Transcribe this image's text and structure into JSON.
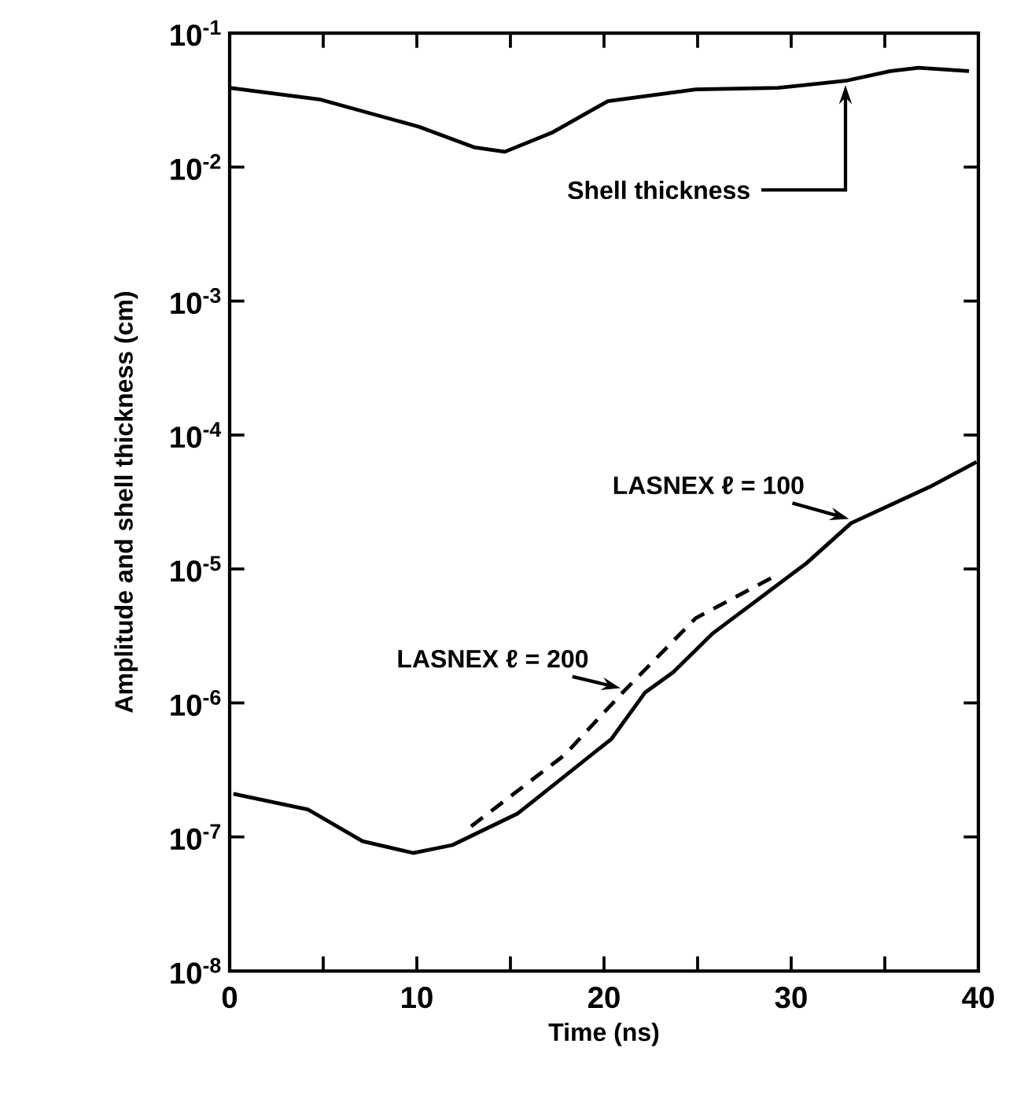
{
  "chart_data": {
    "type": "line",
    "xlabel": "Time (ns)",
    "ylabel": "Amplitude and shell thickness (cm)",
    "log": "y",
    "grid": false,
    "legend": false,
    "xlim": [
      0,
      40
    ],
    "ylim": [
      1e-08,
      0.1
    ],
    "xticks": [
      0,
      {
        "value": 5,
        "label": null
      },
      10,
      {
        "value": 15,
        "label": null
      },
      20,
      {
        "value": 25,
        "label": null
      },
      30,
      {
        "value": 35,
        "label": null
      },
      40
    ],
    "yticks": [
      {
        "value": 1e-08,
        "label": "10$^{-8}$"
      },
      {
        "value": 1e-07,
        "label": "10$^{-7}$"
      },
      {
        "value": 1e-06,
        "label": "10$^{-6}$"
      },
      {
        "value": 1e-05,
        "label": "10$^{-5}$"
      },
      {
        "value": 0.0001,
        "label": "10$^{-4}$"
      },
      {
        "value": 0.001,
        "label": "10$^{-3}$"
      },
      {
        "value": 0.01,
        "label": "10$^{-2}$"
      },
      {
        "value": 0.1,
        "label": "10$^{-1}$"
      }
    ],
    "series": [
      {
        "name": "Shell thickness",
        "color": "#000000",
        "line_style": "solid",
        "x": [
          0,
          4.8,
          10.1,
          13.1,
          14.7,
          17.2,
          20.2,
          24.9,
          29.3,
          32.9,
          35.3,
          36.8,
          39.5
        ],
        "values": [
          0.039,
          0.032,
          0.02,
          0.014,
          0.013,
          0.018,
          0.031,
          0.038,
          0.039,
          0.044,
          0.052,
          0.055,
          0.052
        ]
      },
      {
        "name": "LASNEX ℓ = 100",
        "color": "#000000",
        "line_style": "solid",
        "x": [
          0.2,
          4.2,
          7.1,
          9.8,
          11.9,
          15.4,
          20.4,
          22.2,
          23.7,
          25.8,
          30.8,
          33.2,
          37.4,
          39.9
        ],
        "values": [
          2.1e-07,
          1.6e-07,
          9.3e-08,
          7.6e-08,
          8.7e-08,
          1.5e-07,
          5.4e-07,
          1.2e-06,
          1.7e-06,
          3.3e-06,
          1.1e-05,
          2.2e-05,
          4.1e-05,
          6.3e-05
        ]
      },
      {
        "name": "LASNEX ℓ = 200",
        "color": "#000000",
        "line_style": "dashed",
        "x": [
          12.9,
          17.9,
          21.0,
          24.9,
          29.3
        ],
        "values": [
          1.2e-07,
          4.1e-07,
          1.2e-06,
          4.3e-06,
          9.1e-06
        ]
      }
    ]
  }
}
